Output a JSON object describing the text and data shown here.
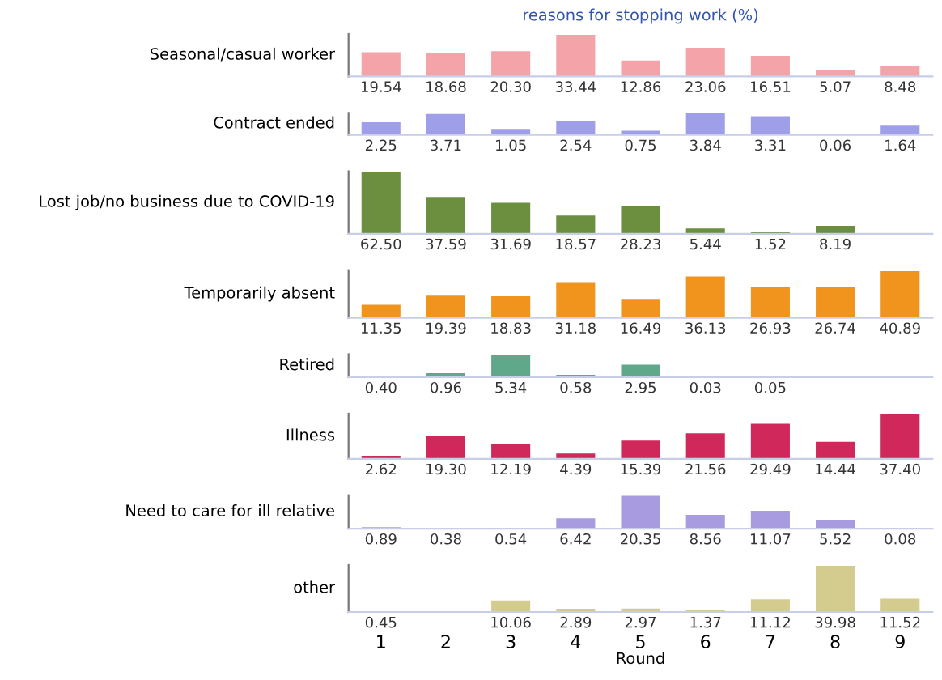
{
  "chart_data": [
    {
      "type": "bar",
      "title": "reasons for stopping work (%)",
      "ylabel": "Seasonal/casual worker",
      "categories": [
        "1",
        "2",
        "3",
        "4",
        "5",
        "6",
        "7",
        "8",
        "9"
      ],
      "values": [
        19.54,
        18.68,
        20.3,
        33.44,
        12.86,
        23.06,
        16.51,
        5.07,
        8.48
      ],
      "value_labels": [
        "19.54",
        "18.68",
        "20.30",
        "33.44",
        "12.86",
        "23.06",
        "16.51",
        "5.07",
        "8.48"
      ],
      "color": "#f4a3a8",
      "tick_labels": false
    },
    {
      "type": "bar",
      "ylabel": "Contract ended",
      "categories": [
        "1",
        "2",
        "3",
        "4",
        "5",
        "6",
        "7",
        "8",
        "9"
      ],
      "values": [
        2.25,
        3.71,
        1.05,
        2.54,
        0.75,
        3.84,
        3.31,
        0.06,
        1.64
      ],
      "value_labels": [
        "2.25",
        "3.71",
        "1.05",
        "2.54",
        "0.75",
        "3.84",
        "3.31",
        "0.06",
        "1.64"
      ],
      "color": "#9f9ee8",
      "tick_labels": false
    },
    {
      "type": "bar",
      "ylabel": "Lost job/no business due to COVID-19",
      "categories": [
        "1",
        "2",
        "3",
        "4",
        "5",
        "6",
        "7",
        "8",
        "9"
      ],
      "values": [
        62.5,
        37.59,
        31.69,
        18.57,
        28.23,
        5.44,
        1.52,
        8.19,
        null
      ],
      "value_labels": [
        "62.50",
        "37.59",
        "31.69",
        "18.57",
        "28.23",
        "5.44",
        "1.52",
        "8.19",
        null
      ],
      "color": "#6b8e3f",
      "tick_labels": false
    },
    {
      "type": "bar",
      "ylabel": "Temporarily absent",
      "categories": [
        "1",
        "2",
        "3",
        "4",
        "5",
        "6",
        "7",
        "8",
        "9"
      ],
      "values": [
        11.35,
        19.39,
        18.83,
        31.18,
        16.49,
        36.13,
        26.93,
        26.74,
        40.89
      ],
      "value_labels": [
        "11.35",
        "19.39",
        "18.83",
        "31.18",
        "16.49",
        "36.13",
        "26.93",
        "26.74",
        "40.89"
      ],
      "color": "#f0941e",
      "tick_labels": false
    },
    {
      "type": "bar",
      "ylabel": "Retired",
      "categories": [
        "1",
        "2",
        "3",
        "4",
        "5",
        "6",
        "7",
        "8",
        "9"
      ],
      "values": [
        0.4,
        0.96,
        5.34,
        0.58,
        2.95,
        0.03,
        0.05,
        null,
        null
      ],
      "value_labels": [
        "0.40",
        "0.96",
        "5.34",
        "0.58",
        "2.95",
        "0.03",
        "0.05",
        null,
        null
      ],
      "color": "#5fa88a",
      "tick_labels": false
    },
    {
      "type": "bar",
      "ylabel": "Illness",
      "categories": [
        "1",
        "2",
        "3",
        "4",
        "5",
        "6",
        "7",
        "8",
        "9"
      ],
      "values": [
        2.62,
        19.3,
        12.19,
        4.39,
        15.39,
        21.56,
        29.49,
        14.44,
        37.4
      ],
      "value_labels": [
        "2.62",
        "19.30",
        "12.19",
        "4.39",
        "15.39",
        "21.56",
        "29.49",
        "14.44",
        "37.40"
      ],
      "color": "#d0285a",
      "tick_labels": false
    },
    {
      "type": "bar",
      "ylabel": "Need to care for ill relative",
      "categories": [
        "1",
        "2",
        "3",
        "4",
        "5",
        "6",
        "7",
        "8",
        "9"
      ],
      "values": [
        0.89,
        0.38,
        0.54,
        6.42,
        20.35,
        8.56,
        11.07,
        5.52,
        0.08
      ],
      "value_labels": [
        "0.89",
        "0.38",
        "0.54",
        "6.42",
        "20.35",
        "8.56",
        "11.07",
        "5.52",
        "0.08"
      ],
      "color": "#a99be0",
      "tick_labels": false
    },
    {
      "type": "bar",
      "ylabel": "other",
      "xlabel": "Round",
      "categories": [
        "1",
        "2",
        "3",
        "4",
        "5",
        "6",
        "7",
        "8",
        "9"
      ],
      "values": [
        0.45,
        null,
        10.06,
        2.89,
        2.97,
        1.37,
        11.12,
        39.98,
        11.52
      ],
      "value_labels": [
        "0.45",
        null,
        "10.06",
        "2.89",
        "2.97",
        "1.37",
        "11.12",
        "39.98",
        "11.52"
      ],
      "color": "#d4cc8e",
      "tick_labels": "x"
    }
  ]
}
